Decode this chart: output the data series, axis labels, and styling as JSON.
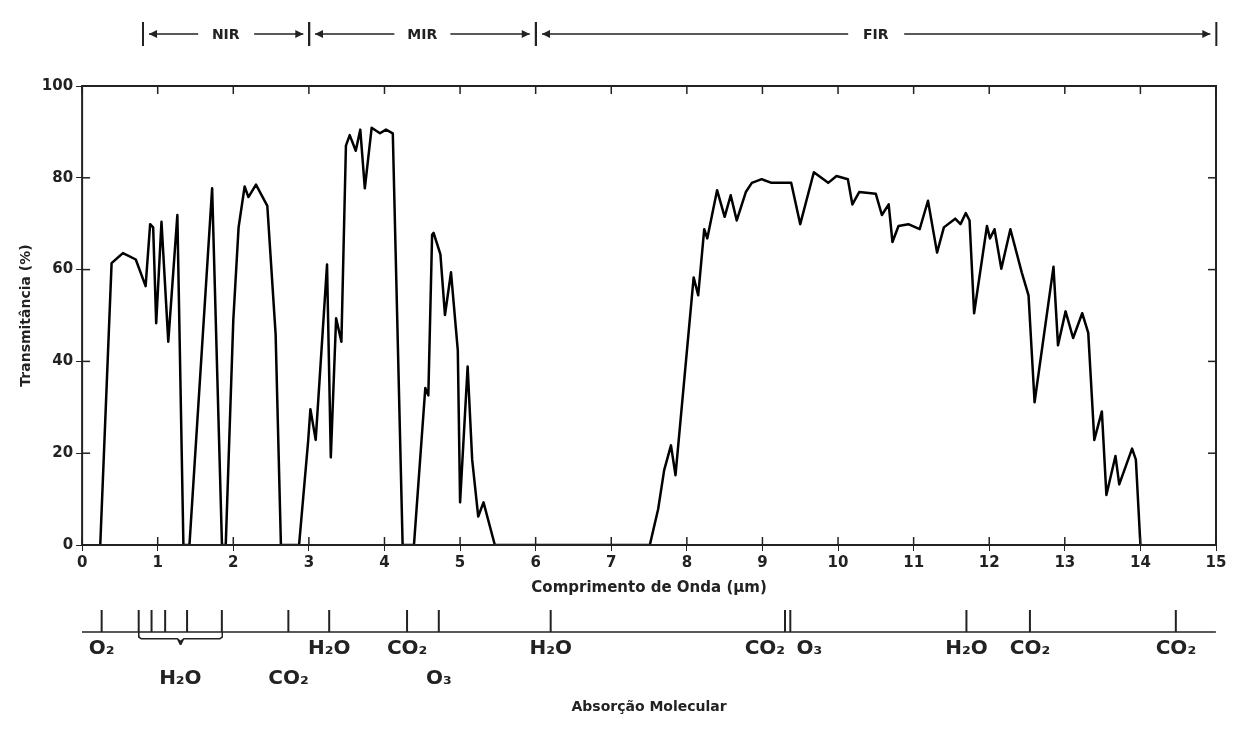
{
  "chart_data": {
    "type": "line",
    "xlabel": "Comprimento de Onda (μm)",
    "ylabel": "Transmitância (%)",
    "xlim": [
      0,
      15
    ],
    "xticks": [
      0,
      1,
      2,
      3,
      4,
      5,
      6,
      7,
      8,
      9,
      10,
      11,
      12,
      13,
      14,
      15
    ],
    "ylim": [
      0,
      100
    ],
    "yticks": [
      0,
      20,
      40,
      60,
      80,
      100
    ],
    "annotations": [
      "NIR",
      "MIR",
      "FIR",
      "O₂",
      "H₂O",
      "CO₂",
      "H₂O",
      "CO₂",
      "O₃",
      "H₂O",
      "CO₂",
      "O₃",
      "H₂O",
      "CO₂",
      "CO₂",
      "Absorção Molecular"
    ],
    "grid": false,
    "legend": false,
    "marker": "none",
    "line_style": "solid",
    "x": [
      0.24,
      0.39,
      0.54,
      0.71,
      0.84,
      0.9,
      0.94,
      0.98,
      1.05,
      1.14,
      1.26,
      1.34,
      1.42,
      1.72,
      1.85,
      1.9,
      2.0,
      2.07,
      2.15,
      2.2,
      2.3,
      2.45,
      2.56,
      2.63,
      2.87,
      2.99,
      3.02,
      3.09,
      3.24,
      3.29,
      3.36,
      3.43,
      3.49,
      3.54,
      3.62,
      3.68,
      3.74,
      3.83,
      3.94,
      4.02,
      4.11,
      4.24,
      4.39,
      4.54,
      4.58,
      4.63,
      4.65,
      4.74,
      4.8,
      4.88,
      4.97,
      5.0,
      5.1,
      5.16,
      5.24,
      5.31,
      5.46,
      7.51,
      7.62,
      7.7,
      7.79,
      7.85,
      8.09,
      8.15,
      8.23,
      8.27,
      8.4,
      8.5,
      8.58,
      8.66,
      8.78,
      8.86,
      8.99,
      9.12,
      9.38,
      9.5,
      9.68,
      9.87,
      9.98,
      10.13,
      10.19,
      10.28,
      10.5,
      10.58,
      10.67,
      10.72,
      10.8,
      10.93,
      11.08,
      11.19,
      11.31,
      11.4,
      11.55,
      11.62,
      11.69,
      11.74,
      11.8,
      11.97,
      12.01,
      12.07,
      12.16,
      12.28,
      12.43,
      12.52,
      12.6,
      12.85,
      12.91,
      13.01,
      13.11,
      13.23,
      13.31,
      13.39,
      13.49,
      13.55,
      13.67,
      13.72,
      13.89,
      13.94,
      14.0
    ],
    "series": [
      {
        "color": "#000000",
        "values": [
          0,
          61.4,
          63.6,
          62.2,
          56.4,
          69.9,
          69.2,
          48.3,
          70.4,
          44.3,
          71.9,
          0,
          0,
          77.7,
          0,
          0,
          49.0,
          69.2,
          78.1,
          75.8,
          78.5,
          73.9,
          45.9,
          0,
          0,
          22.6,
          29.6,
          22.9,
          61.1,
          19.1,
          49.4,
          44.3,
          87.0,
          89.3,
          85.9,
          90.5,
          77.7,
          90.9,
          89.7,
          90.5,
          89.7,
          0,
          0,
          34.2,
          32.6,
          67.6,
          68.0,
          63.3,
          50.1,
          59.4,
          42.4,
          9.3,
          38.9,
          18.6,
          6.2,
          9.3,
          0,
          0,
          7.8,
          16.3,
          21.7,
          15.2,
          58.3,
          54.4,
          68.8,
          66.8,
          77.3,
          71.5,
          76.2,
          70.7,
          76.9,
          78.9,
          79.7,
          78.9,
          78.9,
          69.9,
          81.2,
          78.9,
          80.4,
          79.7,
          74.2,
          76.9,
          76.5,
          71.9,
          74.2,
          66.0,
          69.5,
          69.9,
          68.8,
          75.0,
          63.7,
          69.2,
          71.1,
          69.9,
          72.3,
          70.7,
          50.5,
          69.5,
          66.8,
          68.8,
          60.2,
          68.8,
          59.4,
          54.4,
          31.1,
          60.6,
          43.5,
          50.9,
          45.1,
          50.5,
          46.2,
          22.9,
          29.1,
          10.9,
          19.4,
          13.2,
          21.0,
          18.6,
          0
        ]
      }
    ]
  }
}
